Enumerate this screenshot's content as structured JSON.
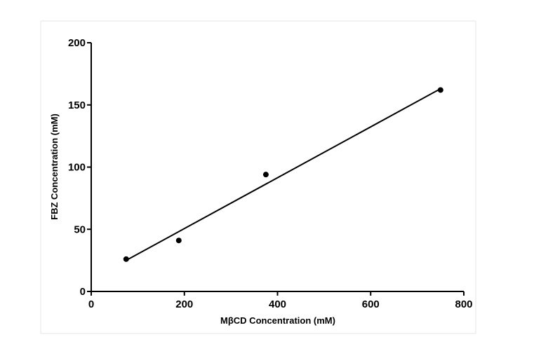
{
  "chart_data": {
    "type": "scatter",
    "title": "",
    "xlabel": "MβCD Concentration (mM)",
    "ylabel": "FBZ Concentration (mM)",
    "xlim": [
      0,
      800
    ],
    "ylim": [
      0,
      200
    ],
    "xticks": [
      0,
      200,
      400,
      600,
      800
    ],
    "yticks": [
      0,
      50,
      100,
      150,
      200
    ],
    "xtick_labels": [
      "0",
      "200",
      "400",
      "600",
      "800"
    ],
    "ytick_labels": [
      "0",
      "50",
      "100",
      "150",
      "200"
    ],
    "grid": false,
    "series": [
      {
        "type": "scatter",
        "x": [
          75,
          188,
          375,
          750
        ],
        "y": [
          26,
          41,
          94,
          162
        ]
      },
      {
        "type": "line",
        "x": [
          75,
          750
        ],
        "y": [
          25,
          163
        ]
      }
    ]
  }
}
